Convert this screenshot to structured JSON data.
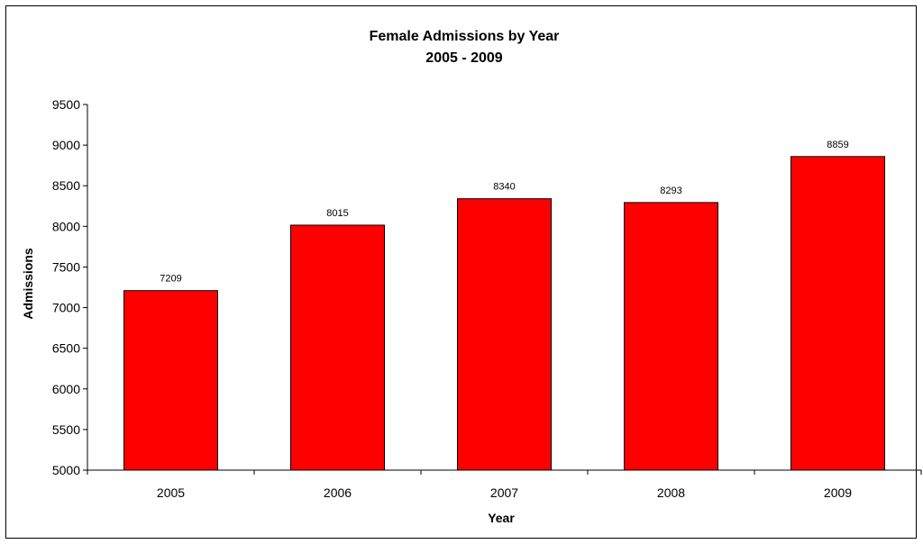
{
  "chart_data": {
    "type": "bar",
    "title": "Female Admissions by Year",
    "subtitle": "2005 - 2009",
    "xlabel": "Year",
    "ylabel": "Admissions",
    "categories": [
      "2005",
      "2006",
      "2007",
      "2008",
      "2009"
    ],
    "values": [
      7209,
      8015,
      8340,
      8293,
      8859
    ],
    "ylim": [
      5000,
      9500
    ],
    "yticks": [
      5000,
      5500,
      6000,
      6500,
      7000,
      7500,
      8000,
      8500,
      9000,
      9500
    ],
    "bar_color": "#ff0000",
    "grid": false,
    "legend": "none"
  }
}
